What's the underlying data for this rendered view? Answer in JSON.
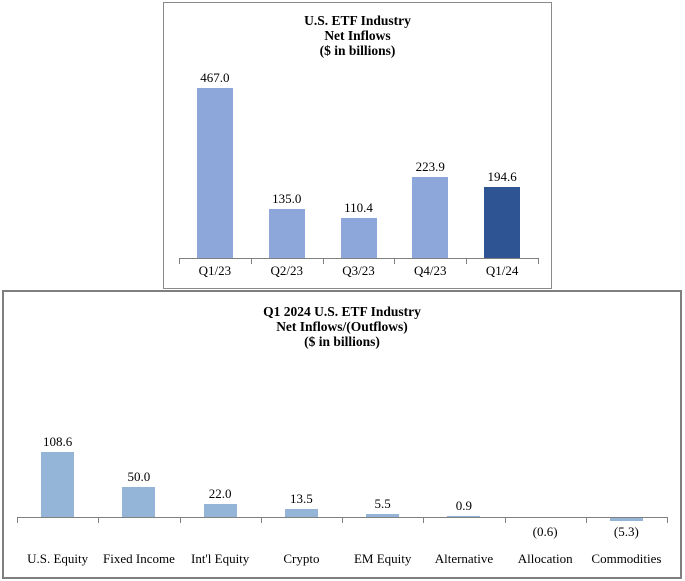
{
  "page": {
    "background": "#FFFFFF"
  },
  "chart_data": [
    {
      "type": "bar",
      "title": "U.S. ETF Industry Net Inflows ($ in billions)",
      "title_lines": [
        "U.S. ETF Industry",
        "Net Inflows",
        "($ in billions)"
      ],
      "categories": [
        "Q1/23",
        "Q2/23",
        "Q3/23",
        "Q4/23",
        "Q1/24"
      ],
      "values": [
        467.0,
        135.0,
        110.4,
        223.9,
        194.6
      ],
      "value_labels": [
        "467.0",
        "135.0",
        "110.4",
        "223.9",
        "194.6"
      ],
      "bar_colors": [
        "#8DA7DB",
        "#8DA7DB",
        "#8DA7DB",
        "#8DA7DB",
        "#2E5494"
      ],
      "highlight_category": "Q1/24",
      "xlabel": "",
      "ylabel": "",
      "ylim": [
        0,
        500
      ],
      "grid": false,
      "legend": "none",
      "axis_color": "#808080"
    },
    {
      "type": "bar",
      "title": "Q1 2024 U.S. ETF Industry Net Inflows/(Outflows) ($ in billions)",
      "title_lines": [
        "Q1 2024 U.S. ETF Industry",
        "Net Inflows/(Outflows)",
        "($ in billions)"
      ],
      "categories": [
        "U.S. Equity",
        "Fixed Income",
        "Int'l Equity",
        "Crypto",
        "EM Equity",
        "Alternative",
        "Allocation",
        "Commodities"
      ],
      "values": [
        108.6,
        50.0,
        22.0,
        13.5,
        5.5,
        0.9,
        -0.6,
        -5.3
      ],
      "value_labels": [
        "108.6",
        "50.0",
        "22.0",
        "13.5",
        "5.5",
        "0.9",
        "(0.6)",
        "(5.3)"
      ],
      "bar_color": "#95B5D8",
      "xlabel": "",
      "ylabel": "",
      "ylim": [
        -20,
        180
      ],
      "grid": false,
      "legend": "none",
      "axis_color": "#808080"
    }
  ]
}
